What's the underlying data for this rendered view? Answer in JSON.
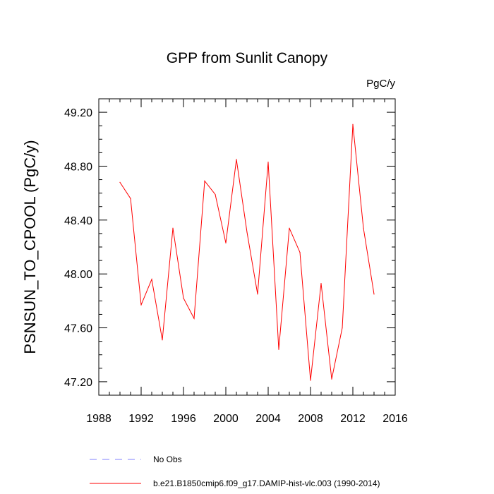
{
  "chart_data": {
    "type": "line",
    "title": "GPP from Sunlit Canopy",
    "units_label": "PgC/y",
    "xlabel": "",
    "ylabel": "PSNSUN_TO_CPOOL  (PgC/y)",
    "xlim": [
      1988,
      2016
    ],
    "ylim": [
      47.1,
      49.3
    ],
    "x_ticks": [
      1988,
      1992,
      1996,
      2000,
      2004,
      2008,
      2012,
      2016
    ],
    "x_tick_labels": [
      "1988",
      "1992",
      "1996",
      "2000",
      "2004",
      "2008",
      "2012",
      "2016"
    ],
    "y_ticks": [
      47.2,
      47.6,
      48.0,
      48.4,
      48.8,
      49.2
    ],
    "y_tick_labels": [
      "47.20",
      "47.60",
      "48.00",
      "48.40",
      "48.80",
      "49.20"
    ],
    "series": [
      {
        "name": "b.e21.B1850cmip6.f09_g17.DAMIP-hist-vlc.003 (1990-2014)",
        "color": "#ff0000",
        "x": [
          1990,
          1991,
          1992,
          1993,
          1994,
          1995,
          1996,
          1997,
          1998,
          1999,
          2000,
          2001,
          2002,
          2003,
          2004,
          2005,
          2006,
          2007,
          2008,
          2009,
          2010,
          2011,
          2012,
          2013,
          2014
        ],
        "values": [
          48.68,
          48.56,
          47.77,
          47.96,
          47.51,
          48.34,
          47.82,
          47.67,
          48.69,
          48.59,
          48.23,
          48.85,
          48.31,
          47.85,
          48.83,
          47.44,
          48.34,
          48.16,
          47.21,
          47.93,
          47.22,
          47.6,
          49.11,
          48.34,
          47.85
        ]
      }
    ],
    "legend": [
      {
        "label": "No Obs",
        "color": "#8080ff",
        "style": "dashed"
      },
      {
        "label": "b.e21.B1850cmip6.f09_g17.DAMIP-hist-vlc.003 (1990-2014)",
        "color": "#ff0000",
        "style": "solid"
      }
    ]
  }
}
